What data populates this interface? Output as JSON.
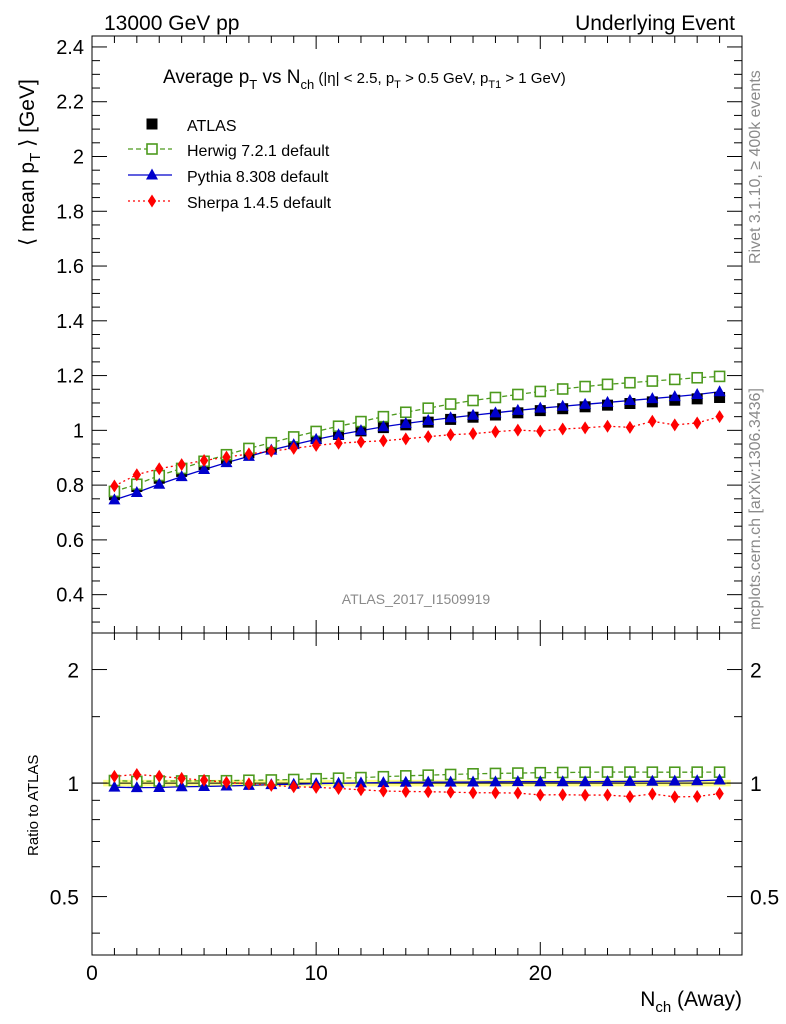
{
  "header": {
    "left": "13000 GeV pp",
    "right": "Underlying Event"
  },
  "side_labels": {
    "rivet": "Rivet 3.1.10, ≥ 400k events",
    "mcplots": "mcplots.cern.ch [arXiv:1306.3436]"
  },
  "watermark": "ATLAS_2017_I1509919",
  "colors": {
    "atlas": "#000000",
    "herwig": "#4d9a1e",
    "pythia": "#0000cc",
    "sherpa": "#ff0000",
    "band": "#ffff66"
  },
  "chart_data": {
    "type": "line",
    "title": {
      "p1": "Average p",
      "s1": "T",
      "p2": " vs N",
      "s2": "ch",
      "p3": " (|η| < 2.5, p",
      "s3": "T",
      "p4": " > 0.5 GeV, p",
      "s4": "T1",
      "p5": " > 1 GeV)"
    },
    "ylabel": {
      "p1": "⟨ mean p",
      "s1": "T",
      "p2": " ⟩ [GeV]"
    },
    "xlabel": {
      "p1": "N",
      "s1": "ch",
      "p2": " (Away)"
    },
    "ratio_ylabel": "Ratio to ATLAS",
    "xlim": [
      0,
      29
    ],
    "ylim": [
      0.26,
      2.44
    ],
    "ratio_ylim": [
      0.35,
      2.5
    ],
    "xticks": [
      {
        "v": 0,
        "label": "0"
      },
      {
        "v": 10,
        "label": "10"
      },
      {
        "v": 20,
        "label": "20"
      }
    ],
    "yticks": [
      {
        "v": 0.4,
        "label": "0.4"
      },
      {
        "v": 0.6,
        "label": "0.6"
      },
      {
        "v": 0.8,
        "label": "0.8"
      },
      {
        "v": 1.0,
        "label": "1"
      },
      {
        "v": 1.2,
        "label": "1.2"
      },
      {
        "v": 1.4,
        "label": "1.4"
      },
      {
        "v": 1.6,
        "label": "1.6"
      },
      {
        "v": 1.8,
        "label": "1.8"
      },
      {
        "v": 2.0,
        "label": "2"
      },
      {
        "v": 2.2,
        "label": "2.2"
      },
      {
        "v": 2.4,
        "label": "2.4"
      }
    ],
    "ratio_yticks": [
      {
        "v": 0.5,
        "label": "0.5"
      },
      {
        "v": 1.0,
        "label": "1"
      },
      {
        "v": 2.0,
        "label": "2"
      }
    ],
    "x": [
      1,
      2,
      3,
      4,
      5,
      6,
      7,
      8,
      9,
      10,
      11,
      12,
      13,
      14,
      15,
      16,
      17,
      18,
      19,
      20,
      21,
      22,
      23,
      24,
      25,
      26,
      27,
      28
    ],
    "series": [
      {
        "key": "atlas",
        "name": "ATLAS",
        "marker": "square",
        "values": [
          0.765,
          0.795,
          0.825,
          0.85,
          0.875,
          0.898,
          0.918,
          0.937,
          0.955,
          0.97,
          0.985,
          0.998,
          1.01,
          1.02,
          1.03,
          1.04,
          1.048,
          1.056,
          1.064,
          1.072,
          1.079,
          1.086,
          1.092,
          1.098,
          1.104,
          1.11,
          1.115,
          1.12
        ]
      },
      {
        "key": "herwig",
        "name": "Herwig 7.2.1 default",
        "marker": "open-square",
        "line": "dashed",
        "values": [
          0.777,
          0.803,
          0.835,
          0.861,
          0.887,
          0.911,
          0.934,
          0.955,
          0.976,
          0.996,
          1.015,
          1.032,
          1.05,
          1.066,
          1.081,
          1.096,
          1.109,
          1.12,
          1.131,
          1.142,
          1.151,
          1.16,
          1.168,
          1.174,
          1.18,
          1.186,
          1.192,
          1.197
        ]
      },
      {
        "key": "pythia",
        "name": "Pythia 8.308 default",
        "marker": "triangle",
        "line": "solid",
        "values": [
          0.746,
          0.773,
          0.803,
          0.831,
          0.857,
          0.882,
          0.905,
          0.928,
          0.948,
          0.967,
          0.984,
          0.999,
          1.013,
          1.025,
          1.036,
          1.046,
          1.055,
          1.064,
          1.073,
          1.081,
          1.088,
          1.095,
          1.102,
          1.109,
          1.116,
          1.123,
          1.131,
          1.141
        ]
      },
      {
        "key": "sherpa",
        "name": "Sherpa 1.4.5 default",
        "marker": "diamond",
        "line": "dotted",
        "values": [
          0.797,
          0.838,
          0.86,
          0.875,
          0.89,
          0.902,
          0.914,
          0.924,
          0.934,
          0.945,
          0.953,
          0.958,
          0.962,
          0.969,
          0.977,
          0.984,
          0.988,
          0.995,
          1.001,
          0.997,
          1.005,
          1.009,
          1.015,
          1.011,
          1.033,
          1.02,
          1.027,
          1.05
        ]
      }
    ]
  }
}
